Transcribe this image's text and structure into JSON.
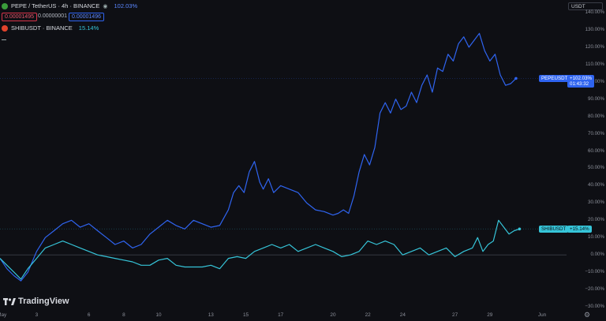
{
  "header": {
    "pepe_symbol": "PEPE / TetherUS · 4h · BINANCE",
    "pepe_change": "102.03%",
    "bid": "0.00001495",
    "spread": "0.00000001",
    "ask": "0.00001496",
    "shib_symbol": "SHIBUSDT · BINANCE",
    "shib_change": "15.14%"
  },
  "currency": "USDT",
  "brand": "TradingView",
  "tags": {
    "pepe_name": "PEPEUSDT",
    "pepe_value": "+102.03%",
    "pepe_timer": "01:43:32",
    "shib_name": "SHIBUSDT",
    "shib_value": "+15.14%"
  },
  "colors": {
    "pepe": "#2f64f0",
    "shib": "#36c5d9",
    "background": "#0e0f14"
  },
  "chart_data": {
    "type": "line",
    "title": "",
    "xlabel": "",
    "ylabel": "",
    "ylim": [
      -30,
      140
    ],
    "y_ticks": [
      "140.00%",
      "130.00%",
      "120.00%",
      "110.00%",
      "100.00%",
      "90.00%",
      "80.00%",
      "70.00%",
      "60.00%",
      "50.00%",
      "40.00%",
      "30.00%",
      "20.00%",
      "10.00%",
      "0.00%",
      "−10.00%",
      "−20.00%",
      "−30.00%"
    ],
    "y_tick_values": [
      140,
      130,
      120,
      110,
      100,
      90,
      80,
      70,
      60,
      50,
      40,
      30,
      20,
      10,
      0,
      -10,
      -20,
      -30
    ],
    "x_ticks": [
      "May",
      "3",
      "6",
      "8",
      "10",
      "13",
      "15",
      "17",
      "20",
      "22",
      "24",
      "27",
      "29",
      "Jun"
    ],
    "x_tick_values": [
      1,
      3,
      6,
      8,
      10,
      13,
      15,
      17,
      20,
      22,
      24,
      27,
      29,
      32
    ],
    "xlim": [
      0.9,
      33.4
    ],
    "series": [
      {
        "name": "PEPEUSDT",
        "x": [
          0.9,
          1.3,
          1.7,
          2.1,
          2.5,
          3.0,
          3.5,
          4.0,
          4.5,
          5.0,
          5.5,
          6.0,
          6.5,
          7.0,
          7.5,
          8.0,
          8.5,
          9.0,
          9.5,
          10.0,
          10.5,
          11.0,
          11.5,
          12.0,
          12.5,
          13.0,
          13.5,
          14.0,
          14.3,
          14.6,
          14.9,
          15.2,
          15.5,
          15.8,
          16.0,
          16.3,
          16.6,
          17.0,
          17.5,
          18.0,
          18.5,
          19.0,
          19.5,
          20.0,
          20.3,
          20.6,
          20.9,
          21.2,
          21.5,
          21.8,
          22.1,
          22.4,
          22.7,
          23.0,
          23.3,
          23.6,
          23.9,
          24.2,
          24.5,
          24.8,
          25.1,
          25.4,
          25.7,
          26.0,
          26.3,
          26.6,
          26.9,
          27.2,
          27.5,
          27.8,
          28.1,
          28.4,
          28.7,
          29.0,
          29.3,
          29.6,
          29.9,
          30.2,
          30.5
        ],
        "values": [
          -2,
          -8,
          -12,
          -15,
          -10,
          2,
          10,
          14,
          18,
          20,
          16,
          18,
          14,
          10,
          6,
          8,
          4,
          6,
          12,
          16,
          20,
          17,
          15,
          20,
          18,
          16,
          17,
          26,
          36,
          40,
          36,
          48,
          54,
          42,
          38,
          44,
          36,
          40,
          38,
          36,
          30,
          26,
          25,
          23,
          24,
          26,
          24,
          34,
          48,
          58,
          52,
          62,
          82,
          88,
          82,
          90,
          84,
          86,
          94,
          88,
          98,
          104,
          94,
          108,
          106,
          116,
          112,
          122,
          126,
          120,
          124,
          128,
          118,
          112,
          116,
          104,
          98,
          99,
          102
        ]
      },
      {
        "name": "SHIBUSDT",
        "x": [
          0.9,
          1.3,
          1.7,
          2.1,
          2.5,
          3.0,
          3.5,
          4.0,
          4.5,
          5.0,
          5.5,
          6.0,
          6.5,
          7.0,
          7.5,
          8.0,
          8.5,
          9.0,
          9.5,
          10.0,
          10.5,
          11.0,
          11.5,
          12.0,
          12.5,
          13.0,
          13.5,
          14.0,
          14.5,
          15.0,
          15.5,
          16.0,
          16.5,
          17.0,
          17.5,
          18.0,
          18.5,
          19.0,
          19.5,
          20.0,
          20.5,
          21.0,
          21.5,
          22.0,
          22.5,
          23.0,
          23.5,
          24.0,
          24.5,
          25.0,
          25.5,
          26.0,
          26.5,
          27.0,
          27.5,
          28.0,
          28.3,
          28.6,
          28.9,
          29.2,
          29.5,
          29.8,
          30.1,
          30.4,
          30.7
        ],
        "values": [
          -2,
          -6,
          -10,
          -14,
          -8,
          -2,
          4,
          6,
          8,
          6,
          4,
          2,
          0,
          -1,
          -2,
          -3,
          -4,
          -6,
          -6,
          -3,
          -2,
          -6,
          -7,
          -7,
          -7,
          -6,
          -8,
          -2,
          -1,
          -2,
          2,
          4,
          6,
          4,
          6,
          2,
          4,
          6,
          4,
          2,
          -1,
          0,
          2,
          8,
          6,
          8,
          6,
          0,
          2,
          4,
          0,
          2,
          4,
          -1,
          2,
          4,
          10,
          2,
          6,
          8,
          20,
          16,
          12,
          14,
          15
        ]
      }
    ]
  }
}
